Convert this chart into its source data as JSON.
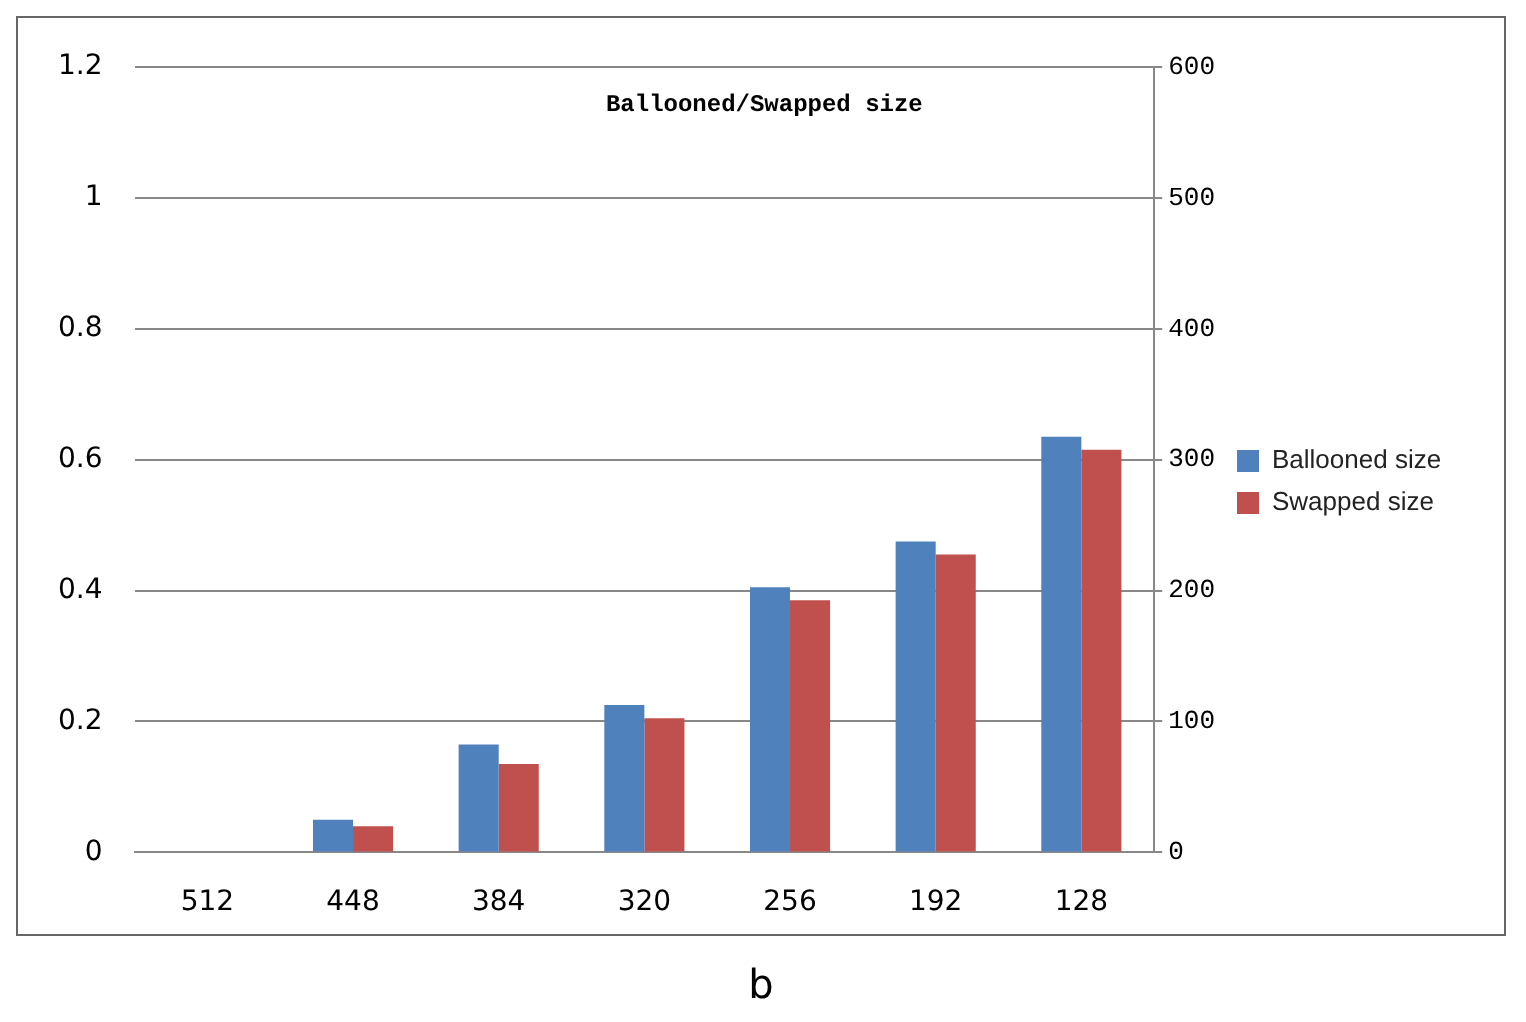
{
  "chart_data": {
    "type": "bar",
    "title": "Ballooned/Swapped size",
    "categories": [
      "512",
      "448",
      "384",
      "320",
      "256",
      "192",
      "128"
    ],
    "series": [
      {
        "name": "Ballooned size",
        "color": "#4f81bd",
        "values": [
          0,
          0.05,
          0.165,
          0.225,
          0.405,
          0.475,
          0.635
        ]
      },
      {
        "name": "Swapped size",
        "color": "#c0504d",
        "values": [
          0,
          0.04,
          0.135,
          0.205,
          0.385,
          0.455,
          0.615
        ]
      }
    ],
    "ylim": [
      0,
      1.2
    ],
    "yticks": [
      0,
      0.2,
      0.4,
      0.6,
      0.8,
      1,
      1.2
    ],
    "y2lim": [
      0,
      600
    ],
    "y2ticks": [
      0,
      100,
      200,
      300,
      400,
      500,
      600
    ],
    "grid": "y",
    "legend": "right",
    "annotations": [
      "b"
    ]
  }
}
